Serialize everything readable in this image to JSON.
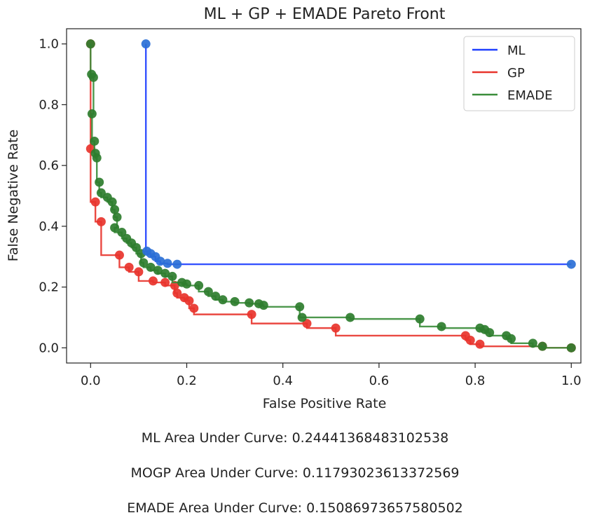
{
  "chart_data": {
    "type": "line",
    "title": "ML + GP + EMADE Pareto Front",
    "xlabel": "False Positive Rate",
    "ylabel": "False Negative Rate",
    "xlim": [
      -0.05,
      1.02
    ],
    "ylim": [
      -0.05,
      1.05
    ],
    "xticks": [
      "0.0",
      "0.2",
      "0.4",
      "0.6",
      "0.8",
      "1.0"
    ],
    "yticks": [
      "0.0",
      "0.2",
      "0.4",
      "0.6",
      "0.8",
      "1.0"
    ],
    "grid": false,
    "legend_position": "top-right",
    "series": [
      {
        "name": "ML",
        "color": "#1f3fff",
        "marker_color": "#2a6fd6",
        "points": [
          [
            0.115,
            1.0
          ],
          [
            0.117,
            0.318
          ],
          [
            0.125,
            0.31
          ],
          [
            0.135,
            0.3
          ],
          [
            0.145,
            0.285
          ],
          [
            0.16,
            0.278
          ],
          [
            0.18,
            0.275
          ],
          [
            1.0,
            0.275
          ]
        ]
      },
      {
        "name": "GP",
        "color": "#e8342c",
        "marker_color": "#e8342c",
        "points": [
          [
            0.0,
            1.0
          ],
          [
            0.0,
            0.655
          ],
          [
            0.01,
            0.48
          ],
          [
            0.022,
            0.415
          ],
          [
            0.06,
            0.305
          ],
          [
            0.08,
            0.265
          ],
          [
            0.1,
            0.25
          ],
          [
            0.13,
            0.22
          ],
          [
            0.155,
            0.215
          ],
          [
            0.175,
            0.205
          ],
          [
            0.18,
            0.18
          ],
          [
            0.195,
            0.165
          ],
          [
            0.205,
            0.155
          ],
          [
            0.215,
            0.13
          ],
          [
            0.335,
            0.11
          ],
          [
            0.45,
            0.08
          ],
          [
            0.51,
            0.065
          ],
          [
            0.78,
            0.04
          ],
          [
            0.79,
            0.025
          ],
          [
            0.81,
            0.012
          ],
          [
            0.94,
            0.005
          ],
          [
            1.0,
            0.0
          ]
        ]
      },
      {
        "name": "EMADE",
        "color": "#3a8d3a",
        "marker_color": "#2e7d2e",
        "points": [
          [
            0.0,
            1.0
          ],
          [
            0.002,
            0.9
          ],
          [
            0.006,
            0.89
          ],
          [
            0.003,
            0.77
          ],
          [
            0.008,
            0.68
          ],
          [
            0.01,
            0.64
          ],
          [
            0.013,
            0.625
          ],
          [
            0.018,
            0.545
          ],
          [
            0.022,
            0.51
          ],
          [
            0.035,
            0.495
          ],
          [
            0.045,
            0.48
          ],
          [
            0.05,
            0.455
          ],
          [
            0.055,
            0.43
          ],
          [
            0.05,
            0.395
          ],
          [
            0.065,
            0.38
          ],
          [
            0.075,
            0.36
          ],
          [
            0.085,
            0.345
          ],
          [
            0.095,
            0.33
          ],
          [
            0.105,
            0.31
          ],
          [
            0.11,
            0.28
          ],
          [
            0.125,
            0.265
          ],
          [
            0.14,
            0.255
          ],
          [
            0.155,
            0.245
          ],
          [
            0.17,
            0.235
          ],
          [
            0.19,
            0.215
          ],
          [
            0.2,
            0.21
          ],
          [
            0.225,
            0.205
          ],
          [
            0.245,
            0.185
          ],
          [
            0.26,
            0.17
          ],
          [
            0.275,
            0.158
          ],
          [
            0.3,
            0.152
          ],
          [
            0.33,
            0.148
          ],
          [
            0.35,
            0.145
          ],
          [
            0.36,
            0.14
          ],
          [
            0.435,
            0.135
          ],
          [
            0.44,
            0.1
          ],
          [
            0.54,
            0.1
          ],
          [
            0.685,
            0.095
          ],
          [
            0.73,
            0.07
          ],
          [
            0.81,
            0.065
          ],
          [
            0.82,
            0.06
          ],
          [
            0.83,
            0.05
          ],
          [
            0.865,
            0.04
          ],
          [
            0.875,
            0.03
          ],
          [
            0.92,
            0.015
          ],
          [
            0.94,
            0.005
          ],
          [
            1.0,
            0.0
          ]
        ]
      }
    ]
  },
  "auc_notes": [
    "ML Area Under Curve: 0.24441368483102538",
    "MOGP Area Under Curve: 0.11793023613372569",
    "EMADE Area Under Curve: 0.15086973657580502"
  ]
}
